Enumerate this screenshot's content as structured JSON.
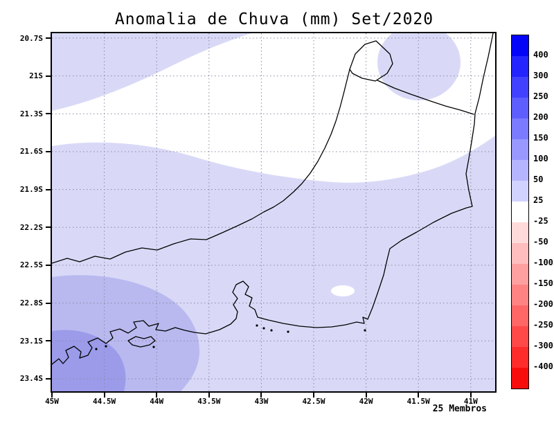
{
  "chart_data": {
    "type": "heatmap",
    "title": "Anomalia de Chuva (mm) Set/2020",
    "annotation": "25 Membros",
    "x_ticks": [
      "45W",
      "44.5W",
      "44W",
      "43.5W",
      "43W",
      "42.5W",
      "42W",
      "41.5W",
      "41W"
    ],
    "y_ticks": [
      "20.7S",
      "21S",
      "21.3S",
      "21.6S",
      "21.9S",
      "22.2S",
      "22.5S",
      "22.8S",
      "23.1S",
      "23.4S"
    ],
    "grid": true,
    "grid_color": "#8888a0",
    "legend_position": "right-colorbar",
    "colorbar": {
      "tick_labels": [
        "400",
        "300",
        "250",
        "200",
        "150",
        "100",
        "50",
        "25",
        "-25",
        "-50",
        "-100",
        "-150",
        "-200",
        "-250",
        "-300",
        "-400"
      ],
      "segment_colors": [
        "#0404f8",
        "#2424ff",
        "#4141ff",
        "#5e5eff",
        "#7b7bff",
        "#9898ff",
        "#b5b5ff",
        "#d2d2ff",
        "#ffffff",
        "#ffdada",
        "#ffbdbd",
        "#ffa0a0",
        "#ff8383",
        "#ff6666",
        "#ff4949",
        "#ff2c2c",
        "#f80d0d"
      ]
    },
    "map": {
      "region_outline": "Rio de Janeiro state coastline and borders",
      "outline_color": "#000000",
      "levels": {
        "zero": {
          "range": "-25 to 25",
          "color": "#ffffff"
        },
        "base": {
          "range": "25 to 50",
          "color": "#d9d9f7"
        },
        "mid": {
          "range": "50 to 100",
          "color": "#b9b9f0"
        },
        "high": {
          "range": "100 to 150",
          "color": "#9b9bea"
        }
      }
    }
  }
}
